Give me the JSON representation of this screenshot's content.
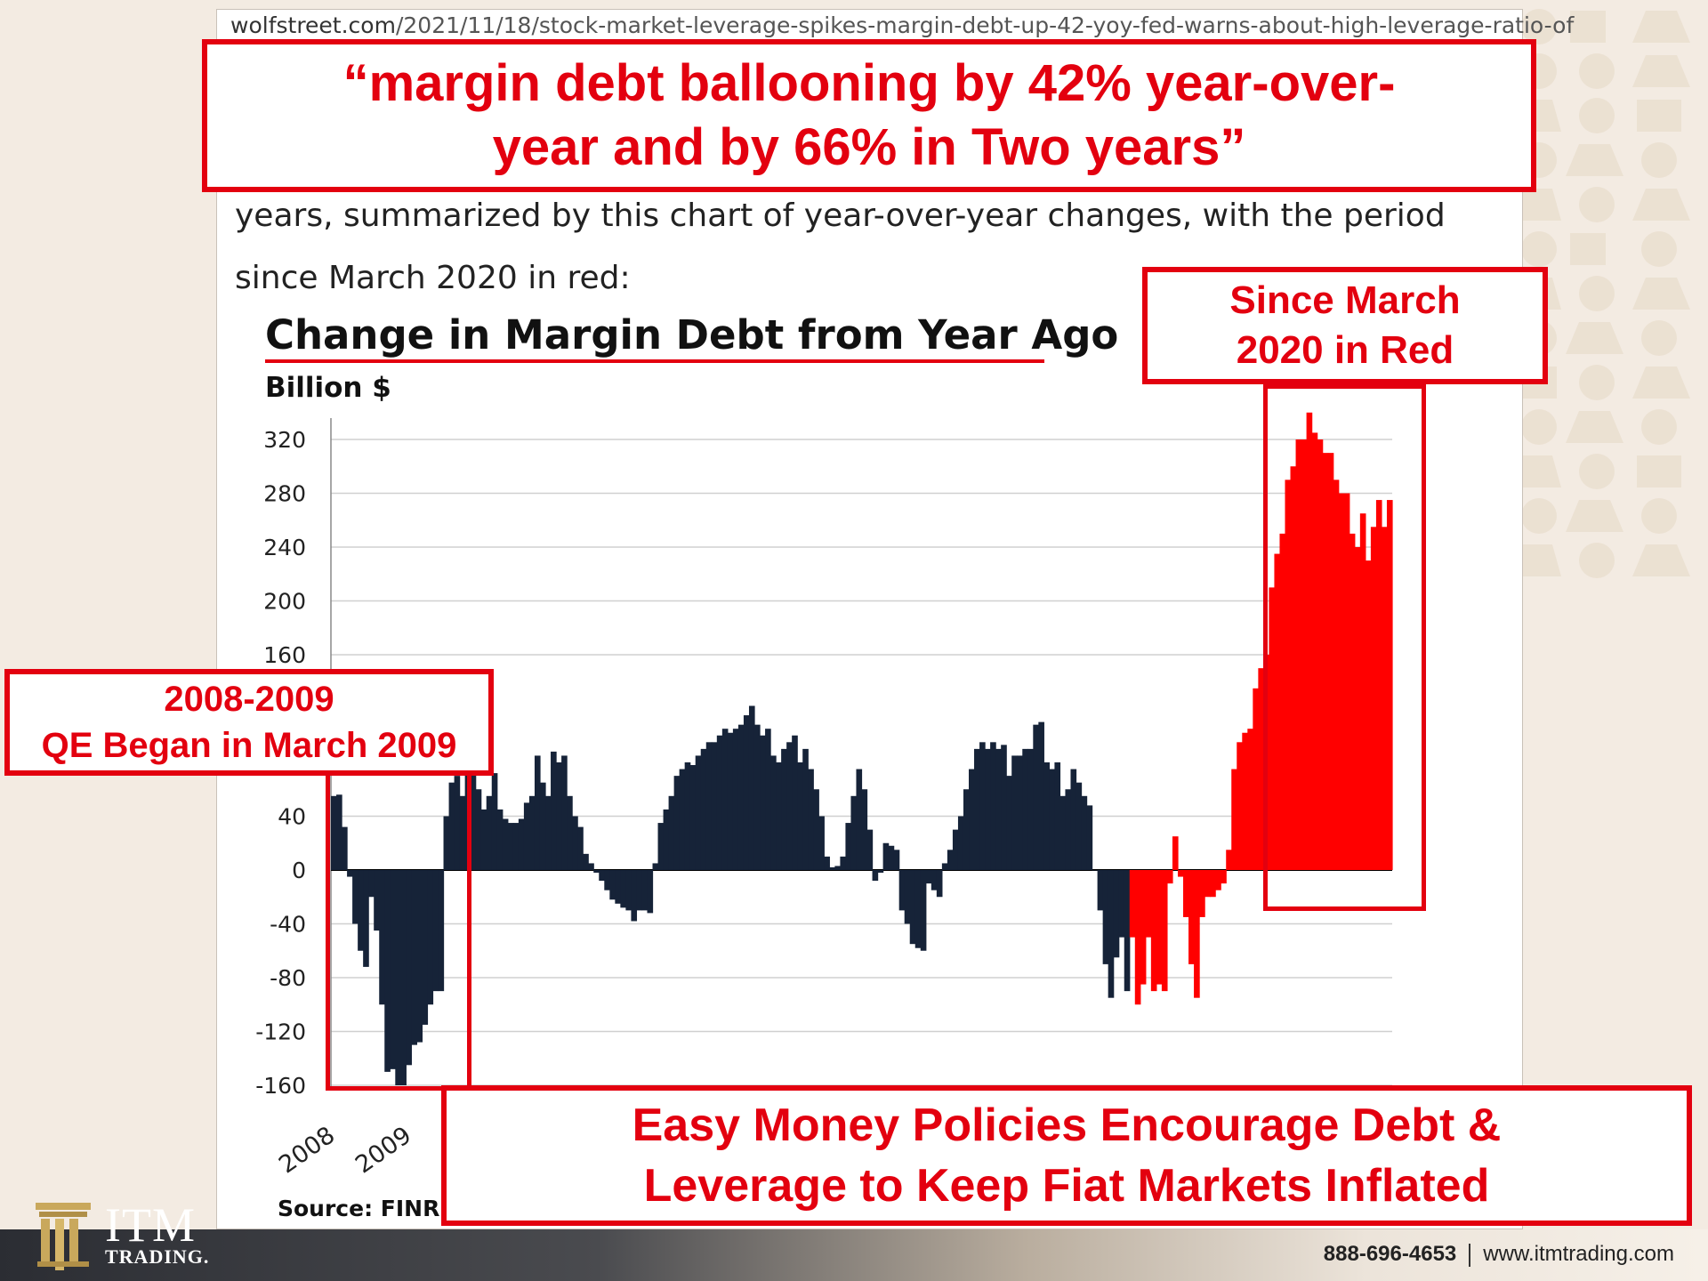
{
  "article": {
    "url_domain": "wolfstreet.com",
    "url_path": "/2021/11/18/stock-market-leverage-spikes-margin-debt-up-42-yoy-fed-warns-about-high-leverage-ratio-of",
    "para_line1": "years, summarized by this chart of year-over-year changes, with the period",
    "para_line2": "since March 2020 in red:"
  },
  "callouts": {
    "headline_line1": "“margin debt ballooning by 42% year-over-",
    "headline_line2": "year and by 66% in Two years”",
    "since_line1": "Since March",
    "since_line2": "2020 in Red",
    "qe_line1": "2008-2009",
    "qe_line2": "QE Began in March 2009",
    "easy_line1": "Easy Money Policies Encourage Debt &",
    "easy_line2": "Leverage to Keep Fiat Markets Inflated"
  },
  "footer": {
    "phone": "888-696-4653",
    "website": "www.itmtrading.com",
    "logo_text": "ITM",
    "logo_sub": "TRADING."
  },
  "colors": {
    "negative_bar": "#162338",
    "positive_bar": "#162338",
    "highlight_bar": "#ff0000",
    "accent": "#e3000f"
  },
  "chart_data": {
    "type": "bar",
    "title": "Change in Margin Debt from Year Ago",
    "ylabel": "Billion $",
    "source": "Source: FINR",
    "ylim": [
      -160,
      320
    ],
    "yticks": [
      320,
      280,
      240,
      200,
      160,
      40,
      0,
      -40,
      -80,
      -120,
      -160
    ],
    "x_tick_labels": [
      "2008",
      "2009"
    ],
    "highlight_from_index": 149,
    "values": [
      55,
      56,
      32,
      -5,
      -40,
      -60,
      -72,
      -20,
      -45,
      -100,
      -150,
      -148,
      -160,
      -160,
      -145,
      -130,
      -128,
      -115,
      -100,
      -90,
      -90,
      40,
      65,
      70,
      55,
      75,
      78,
      60,
      45,
      55,
      72,
      45,
      38,
      35,
      35,
      38,
      50,
      55,
      85,
      65,
      55,
      88,
      80,
      85,
      55,
      40,
      32,
      12,
      5,
      -2,
      -8,
      -15,
      -22,
      -25,
      -28,
      -30,
      -38,
      -30,
      -30,
      -32,
      5,
      35,
      45,
      55,
      70,
      75,
      80,
      78,
      85,
      90,
      95,
      95,
      100,
      105,
      102,
      105,
      108,
      115,
      122,
      108,
      100,
      105,
      85,
      80,
      90,
      95,
      100,
      80,
      90,
      75,
      60,
      40,
      10,
      2,
      3,
      10,
      35,
      55,
      75,
      60,
      30,
      -8,
      -2,
      20,
      18,
      15,
      -30,
      -40,
      -55,
      -58,
      -60,
      -10,
      -15,
      -20,
      5,
      15,
      30,
      40,
      60,
      75,
      90,
      95,
      90,
      95,
      90,
      93,
      70,
      85,
      85,
      90,
      90,
      108,
      110,
      80,
      75,
      80,
      55,
      60,
      75,
      65,
      55,
      48,
      0,
      -30,
      -70,
      -95,
      -65,
      -50,
      -90,
      -50,
      -100,
      -85,
      -50,
      -90,
      -85,
      -90,
      -10,
      25,
      -5,
      -35,
      -70,
      -95,
      -35,
      -20,
      -20,
      -15,
      -10,
      15,
      75,
      95,
      102,
      105,
      135,
      150,
      160,
      210,
      235,
      250,
      290,
      300,
      320,
      320,
      340,
      325,
      320,
      310,
      310,
      290,
      280,
      280,
      250,
      240,
      265,
      230,
      255,
      275,
      255,
      275
    ]
  }
}
